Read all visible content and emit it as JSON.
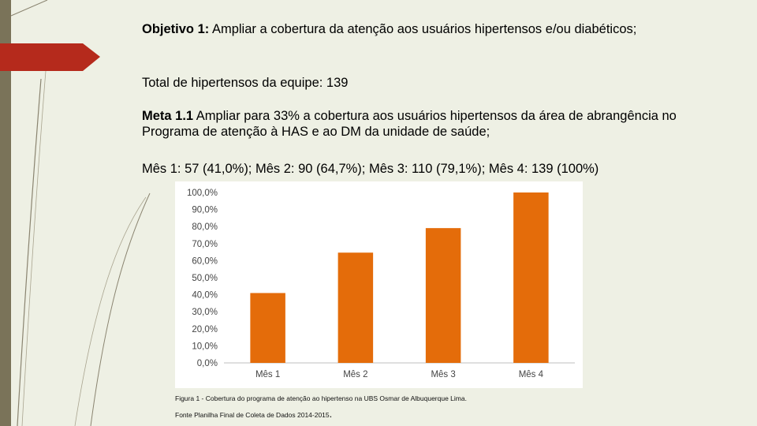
{
  "text": {
    "objetivo_label": "Objetivo 1:",
    "objetivo_text": " Ampliar a cobertura da atenção aos usuários hipertensos e/ou diabéticos;",
    "total": "Total de hipertensos da equipe: 139",
    "meta_label": "Meta 1.1",
    "meta_text": " Ampliar para 33% a cobertura aos usuários hipertensos da área de abrangência no Programa de atenção à HAS e ao DM da unidade de saúde;",
    "meses": "Mês 1: 57 (41,0%); Mês 2: 90 (64,7%); Mês 3: 110 (79,1%); Mês 4: 139 (100%)"
  },
  "caption": {
    "figure": "Figura 1 - Cobertura do programa de atenção ao hipertenso na UBS Osmar de Albuquerque Lima.",
    "source": "Fonte Planilha Final de Coleta de Dados 2014-2015",
    "source_dot": "."
  },
  "colors": {
    "bar": "#e46c0a",
    "accent_red": "#b52a1c",
    "side_bar": "#7a7359",
    "background": "#eef0e4"
  },
  "chart_data": {
    "type": "bar",
    "categories": [
      "Mês 1",
      "Mês 2",
      "Mês 3",
      "Mês 4"
    ],
    "values": [
      41.0,
      64.7,
      79.1,
      100.0
    ],
    "ylim": [
      0,
      100
    ],
    "yticks": [
      "0,0%",
      "10,0%",
      "20,0%",
      "30,0%",
      "40,0%",
      "50,0%",
      "60,0%",
      "70,0%",
      "80,0%",
      "90,0%",
      "100,0%"
    ],
    "grid": false,
    "legend": "none",
    "title": "",
    "xlabel": "",
    "ylabel": ""
  }
}
